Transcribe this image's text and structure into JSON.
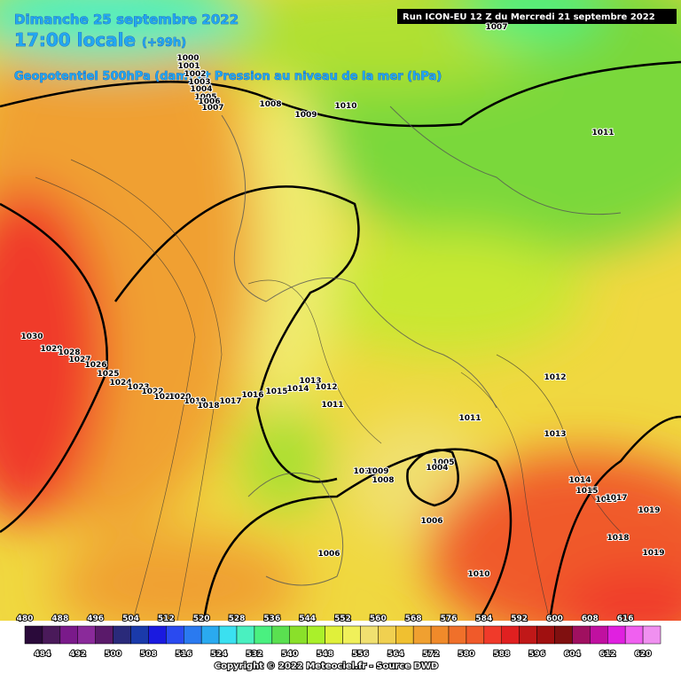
{
  "header": {
    "date": "Dimanche 25 septembre 2022",
    "time": "17:00 locale",
    "lead": "(+99h)",
    "field": "Geopotentiel 500hPa (dam) et Pression au niveau de la mer (hPa)",
    "run": "Run ICON-EU 12 Z du Mercredi 21 septembre 2022"
  },
  "isobar_labels": [
    1000,
    1001,
    1002,
    1003,
    1004,
    1005,
    1006,
    1007,
    1007,
    1008,
    1009,
    1010,
    1011,
    1030,
    1029,
    1028,
    1027,
    1026,
    1025,
    1024,
    1023,
    1022,
    1021,
    1020,
    1019,
    1018,
    1017,
    1016,
    1015,
    1014,
    1013,
    1012,
    1011,
    1011,
    1012,
    1013,
    1010,
    1009,
    1008,
    1005,
    1004,
    1006,
    1006,
    1010,
    1014,
    1015,
    1016,
    1017,
    1019,
    1018,
    1019
  ],
  "scale": {
    "labels": [
      480,
      484,
      488,
      492,
      496,
      500,
      504,
      508,
      512,
      516,
      520,
      524,
      528,
      532,
      536,
      540,
      544,
      548,
      552,
      556,
      560,
      564,
      568,
      572,
      576,
      580,
      584,
      588,
      592,
      596,
      600,
      604,
      608,
      612,
      616,
      620
    ],
    "colors": [
      "#2a0a3a",
      "#4a1a5a",
      "#7a1a8a",
      "#8a2a9a",
      "#5a1a6a",
      "#2a2a7a",
      "#1a3aaa",
      "#1a1ae0",
      "#2a4af0",
      "#2a7af0",
      "#2aaaf0",
      "#3ae0f0",
      "#4af0c0",
      "#4af080",
      "#5ae050",
      "#8ae02a",
      "#aaf02a",
      "#e0f03a",
      "#f0f05a",
      "#f0e070",
      "#f0d050",
      "#f0c030",
      "#f0a030",
      "#f08a2a",
      "#f0702a",
      "#f05a2a",
      "#f03a2a",
      "#e02020",
      "#c01818",
      "#a01010",
      "#801010",
      "#a01060",
      "#c010a0",
      "#e020e0",
      "#f060f0",
      "#f090f0"
    ]
  },
  "footer": {
    "copyright": "Copyright © 2022 Meteociel.fr - Source DWD"
  }
}
